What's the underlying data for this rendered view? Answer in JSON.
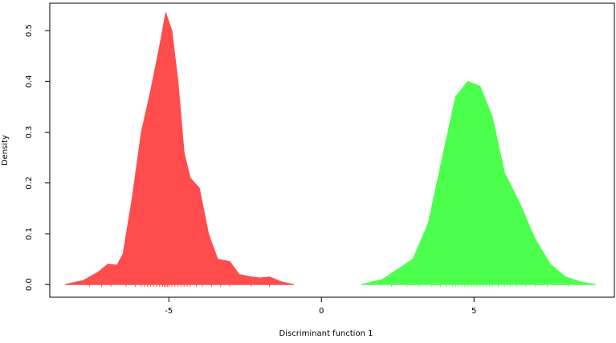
{
  "chart_data": {
    "type": "density",
    "xlabel": "Discriminant function 1",
    "ylabel": "Density",
    "xlim": [
      -8.9,
      9.6
    ],
    "ylim": [
      -0.025,
      0.554
    ],
    "xticks": [
      -5,
      0,
      5
    ],
    "yticks": [
      {
        "value": 0,
        "label": "0.0"
      },
      0.1,
      0.2,
      0.3,
      0.4,
      0.5
    ],
    "series": [
      {
        "color": "#ff4c4c",
        "x": [
          -8.4,
          -7.8,
          -7.3,
          -7.0,
          -6.7,
          -6.5,
          -6.2,
          -5.9,
          -5.6,
          -5.3,
          -5.1,
          -4.9,
          -4.7,
          -4.5,
          -4.3,
          -4.0,
          -3.7,
          -3.4,
          -3.0,
          -2.7,
          -2.3,
          -2.0,
          -1.7,
          -1.3,
          -0.9
        ],
        "values": [
          0,
          0.008,
          0.025,
          0.04,
          0.038,
          0.06,
          0.17,
          0.3,
          0.38,
          0.47,
          0.535,
          0.5,
          0.4,
          0.26,
          0.21,
          0.19,
          0.1,
          0.05,
          0.045,
          0.02,
          0.015,
          0.013,
          0.015,
          0.005,
          0
        ],
        "rug": [
          -7.6,
          -7.2,
          -6.9,
          -6.4,
          -6.1,
          -5.9,
          -5.8,
          -5.7,
          -5.6,
          -5.5,
          -5.4,
          -5.3,
          -5.2,
          -5.15,
          -5.1,
          -5.05,
          -5.0,
          -4.9,
          -4.8,
          -4.7,
          -4.6,
          -4.5,
          -4.4,
          -4.3,
          -4.1,
          -3.9,
          -3.6,
          -3.3,
          -3.0,
          -2.3,
          -1.7
        ]
      },
      {
        "color": "#4cff4c",
        "x": [
          1.3,
          2.0,
          2.5,
          3.0,
          3.5,
          4.0,
          4.4,
          4.8,
          5.2,
          5.6,
          6.0,
          6.5,
          7.0,
          7.5,
          8.0,
          8.5,
          9.0
        ],
        "values": [
          0,
          0.01,
          0.03,
          0.05,
          0.12,
          0.26,
          0.37,
          0.4,
          0.39,
          0.33,
          0.22,
          0.16,
          0.09,
          0.04,
          0.015,
          0.005,
          0
        ],
        "rug": [
          2.3,
          2.8,
          3.2,
          3.6,
          3.9,
          4.1,
          4.3,
          4.4,
          4.5,
          4.6,
          4.7,
          4.8,
          4.9,
          5.0,
          5.1,
          5.2,
          5.3,
          5.4,
          5.5,
          5.6,
          5.8,
          6.0,
          6.2,
          6.4,
          6.7,
          7.0,
          7.4,
          8.1
        ]
      }
    ]
  }
}
